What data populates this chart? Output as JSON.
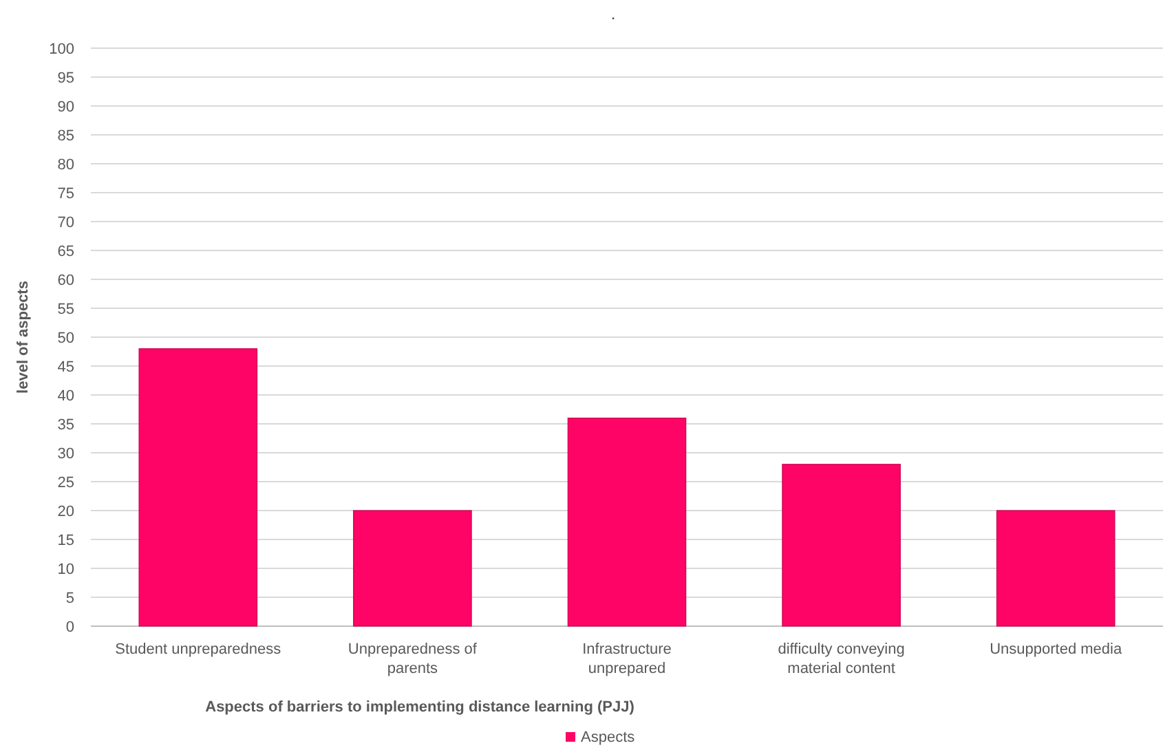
{
  "chart_data": {
    "type": "bar",
    "title": ".",
    "xlabel": "Aspects of barriers to implementing distance learning (PJJ)",
    "ylabel": "level of aspects",
    "categories": [
      "Student unpreparedness",
      "Unpreparedness of parents",
      "Infrastructure unprepared",
      "difficulty conveying material content",
      "Unsupported media"
    ],
    "series": [
      {
        "name": "Aspects",
        "color": "#fe0466",
        "values": [
          48,
          20,
          36,
          28,
          20
        ]
      }
    ],
    "ylim": [
      0,
      100
    ],
    "yticks": [
      0,
      5,
      10,
      15,
      20,
      25,
      30,
      35,
      40,
      45,
      50,
      55,
      60,
      65,
      70,
      75,
      80,
      85,
      90,
      95,
      100
    ],
    "grid": "y",
    "legend": "bottom"
  }
}
